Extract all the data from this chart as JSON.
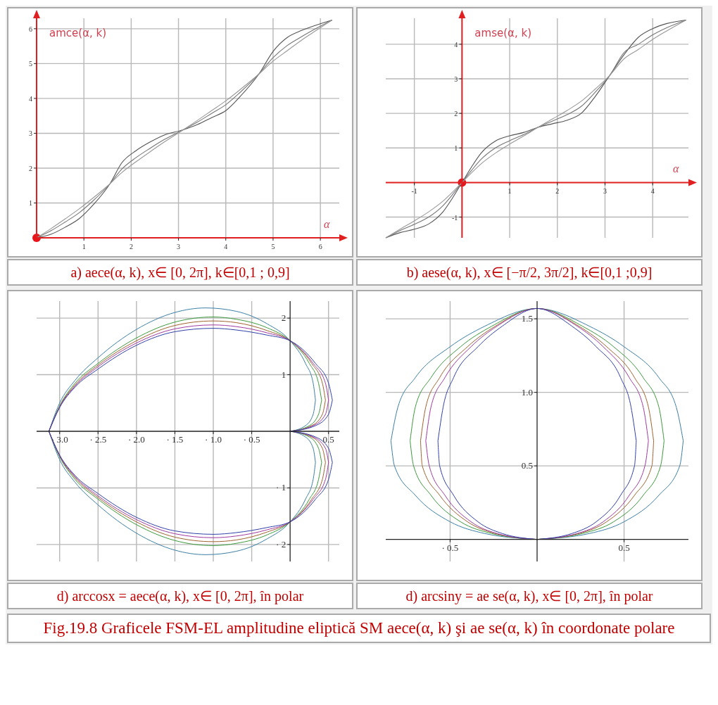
{
  "chart_data": [
    {
      "type": "line",
      "title": "a) aece(α, k), x∈ [0, 2π], k∈[0,1 ; 0,9]",
      "xlabel": "α",
      "ylabel": "amce(α, k)",
      "xlim": [
        0,
        6.4
      ],
      "ylim": [
        0,
        6.3
      ],
      "xticks": [
        1,
        2,
        3,
        4,
        5,
        6
      ],
      "yticks": [
        1,
        2,
        3,
        4,
        5,
        6
      ],
      "grid": true,
      "series": [
        {
          "color": "#555555",
          "x": [
            0,
            0.3,
            0.6,
            0.9,
            1.2,
            1.55,
            1.8,
            2.1,
            2.4,
            2.7,
            3.1,
            3.4,
            3.7,
            4.0,
            4.3,
            4.7,
            5.0,
            5.3,
            5.6,
            5.9,
            6.25
          ],
          "values": [
            0,
            0.1,
            0.3,
            0.55,
            0.95,
            1.55,
            2.15,
            2.5,
            2.75,
            2.95,
            3.1,
            3.25,
            3.45,
            3.65,
            4.05,
            4.7,
            5.35,
            5.75,
            5.95,
            6.1,
            6.25
          ]
        },
        {
          "color": "#777777",
          "x": [
            0,
            0.3,
            0.6,
            0.9,
            1.2,
            1.55,
            1.8,
            2.1,
            2.4,
            2.7,
            3.1,
            3.4,
            3.7,
            4.0,
            4.3,
            4.7,
            5.0,
            5.3,
            5.6,
            5.9,
            6.25
          ],
          "values": [
            0,
            0.2,
            0.45,
            0.72,
            1.07,
            1.55,
            1.97,
            2.3,
            2.57,
            2.82,
            3.1,
            3.32,
            3.57,
            3.82,
            4.17,
            4.7,
            5.17,
            5.52,
            5.77,
            6.0,
            6.25
          ]
        },
        {
          "color": "#999999",
          "x": [
            0,
            0.3,
            0.6,
            0.9,
            1.2,
            1.55,
            1.8,
            2.1,
            2.4,
            2.7,
            3.1,
            3.4,
            3.7,
            4.0,
            4.3,
            4.7,
            5.0,
            5.3,
            5.6,
            5.9,
            6.25
          ],
          "values": [
            0,
            0.26,
            0.54,
            0.83,
            1.15,
            1.55,
            1.87,
            2.18,
            2.47,
            2.75,
            3.1,
            3.37,
            3.65,
            3.93,
            4.25,
            4.7,
            5.07,
            5.37,
            5.67,
            5.94,
            6.25
          ]
        }
      ]
    },
    {
      "type": "line",
      "title": "b) aese(α, k), x∈ [−π/2, 3π/2], k∈[0,1 ;0,9]",
      "xlabel": "α",
      "ylabel": "amse(α, k)",
      "xlim": [
        -1.6,
        4.75
      ],
      "ylim": [
        -1.6,
        4.75
      ],
      "xticks": [
        -1,
        1,
        2,
        3,
        4
      ],
      "yticks": [
        -1,
        1,
        2,
        3,
        4
      ],
      "grid": true,
      "series": [
        {
          "color": "#555555",
          "x": [
            -1.6,
            -1.3,
            -1.0,
            -0.7,
            -0.4,
            -0.2,
            0,
            0.2,
            0.4,
            0.7,
            1.0,
            1.3,
            1.6,
            1.9,
            2.2,
            2.5,
            2.8,
            3.1,
            3.4,
            3.7,
            4.0,
            4.3,
            4.7
          ],
          "values": [
            -1.6,
            -1.45,
            -1.35,
            -1.2,
            -0.85,
            -0.45,
            0,
            0.45,
            0.85,
            1.2,
            1.35,
            1.45,
            1.6,
            1.7,
            1.8,
            2.0,
            2.5,
            3.1,
            3.7,
            4.2,
            4.45,
            4.6,
            4.7
          ]
        },
        {
          "color": "#777777",
          "x": [
            -1.6,
            -1.3,
            -1.0,
            -0.7,
            -0.4,
            -0.2,
            0,
            0.2,
            0.4,
            0.7,
            1.0,
            1.3,
            1.6,
            1.9,
            2.2,
            2.5,
            2.8,
            3.1,
            3.4,
            3.7,
            4.0,
            4.3,
            4.7
          ],
          "values": [
            -1.6,
            -1.39,
            -1.21,
            -1.0,
            -0.67,
            -0.35,
            0,
            0.35,
            0.67,
            1.0,
            1.21,
            1.39,
            1.6,
            1.78,
            1.96,
            2.2,
            2.62,
            3.1,
            3.76,
            4.0,
            4.27,
            4.48,
            4.7
          ]
        },
        {
          "color": "#999999",
          "x": [
            -1.6,
            -1.3,
            -1.0,
            -0.7,
            -0.4,
            -0.2,
            0,
            0.2,
            0.4,
            0.7,
            1.0,
            1.3,
            1.6,
            1.9,
            2.2,
            2.5,
            2.8,
            3.1,
            3.4,
            3.7,
            4.0,
            4.3,
            4.7
          ],
          "values": [
            -1.6,
            -1.35,
            -1.11,
            -0.85,
            -0.54,
            -0.28,
            0,
            0.28,
            0.54,
            0.85,
            1.11,
            1.35,
            1.6,
            1.84,
            2.08,
            2.35,
            2.71,
            3.1,
            3.58,
            3.85,
            4.14,
            4.39,
            4.7
          ]
        }
      ]
    },
    {
      "type": "line",
      "title": "d)    arccosx = aece(α, k), x∈ [0, 2π], în polar",
      "xlim": [
        -3.3,
        0.64
      ],
      "ylim": [
        -2.3,
        2.3
      ],
      "xticks": [
        {
          "value": -3,
          "label": "· 3.0"
        },
        {
          "value": -2.5,
          "label": "· 2.5"
        },
        {
          "value": -2,
          "label": "· 2.0"
        },
        {
          "value": -1.5,
          "label": "· 1.5"
        },
        {
          "value": -1,
          "label": "· 1.0"
        },
        {
          "value": -0.5,
          "label": "· 0.5"
        },
        0.5
      ],
      "yticks": [
        {
          "value": -2,
          "label": "· 2"
        },
        {
          "value": -1,
          "label": "· 1"
        },
        1,
        2
      ],
      "grid": true,
      "series": [
        {
          "color": "#3b7fa6",
          "x": [
            0,
            0.2,
            0.3,
            0.33
          ],
          "values": [
            0,
            0.1,
            0.3,
            0.55
          ]
        },
        {
          "color": "#3b7fa6",
          "x": [
            0.33,
            0.3,
            0.2,
            0,
            -0.3,
            -0.7,
            -1.1,
            -1.5,
            -2.0,
            -2.5,
            -2.8,
            -3.0,
            -3.14
          ],
          "values": [
            0.55,
            0.85,
            1.2,
            1.6,
            1.9,
            2.12,
            2.18,
            2.1,
            1.8,
            1.3,
            0.9,
            0.5,
            0
          ]
        },
        {
          "color": "#3b7fa6",
          "x": [
            -3.14,
            -3.0,
            -2.8,
            -2.5,
            -2.0,
            -1.5,
            -1.1,
            -0.7,
            -0.3,
            0,
            0.2,
            0.3,
            0.33
          ],
          "values": [
            0,
            -0.5,
            -0.9,
            -1.3,
            -1.8,
            -2.1,
            -2.18,
            -2.12,
            -1.9,
            -1.6,
            -1.2,
            -0.85,
            -0.55
          ]
        },
        {
          "color": "#3b7fa6",
          "x": [
            0.33,
            0.3,
            0.2,
            0
          ],
          "values": [
            -0.55,
            -0.3,
            -0.1,
            0
          ]
        },
        {
          "color": "#3c9a3c",
          "x": [
            0,
            0.25,
            0.37,
            0.41
          ],
          "values": [
            0,
            0.1,
            0.3,
            0.55
          ]
        },
        {
          "color": "#3c9a3c",
          "x": [
            0.41,
            0.37,
            0.25,
            0,
            -0.3,
            -0.7,
            -1.0,
            -1.5,
            -2.0,
            -2.5,
            -2.8,
            -3.0,
            -3.14
          ],
          "values": [
            0.55,
            0.85,
            1.2,
            1.6,
            1.83,
            1.98,
            2.02,
            1.93,
            1.65,
            1.2,
            0.85,
            0.45,
            0
          ]
        },
        {
          "color": "#3c9a3c",
          "x": [
            -3.14,
            -3.0,
            -2.8,
            -2.5,
            -2.0,
            -1.5,
            -1.0,
            -0.7,
            -0.3,
            0,
            0.25,
            0.37,
            0.41
          ],
          "values": [
            0,
            -0.45,
            -0.85,
            -1.2,
            -1.65,
            -1.93,
            -2.02,
            -1.98,
            -1.83,
            -1.6,
            -1.2,
            -0.85,
            -0.55
          ]
        },
        {
          "color": "#3c9a3c",
          "x": [
            0.41,
            0.37,
            0.25,
            0
          ],
          "values": [
            -0.55,
            -0.3,
            -0.1,
            0
          ]
        },
        {
          "color": "#a0622d",
          "x": [
            0,
            0.28,
            0.42,
            0.46
          ],
          "values": [
            0,
            0.1,
            0.3,
            0.55
          ]
        },
        {
          "color": "#a0622d",
          "x": [
            0.46,
            0.42,
            0.28,
            0,
            -0.3,
            -0.7,
            -1.0,
            -1.5,
            -2.0,
            -2.5,
            -2.8,
            -3.0,
            -3.14
          ],
          "values": [
            0.55,
            0.85,
            1.2,
            1.6,
            1.78,
            1.92,
            1.95,
            1.87,
            1.6,
            1.17,
            0.82,
            0.44,
            0
          ]
        },
        {
          "color": "#a0622d",
          "x": [
            -3.14,
            -3.0,
            -2.8,
            -2.5,
            -2.0,
            -1.5,
            -1.0,
            -0.7,
            -0.3,
            0,
            0.28,
            0.42,
            0.46
          ],
          "values": [
            0,
            -0.44,
            -0.82,
            -1.17,
            -1.6,
            -1.87,
            -1.95,
            -1.92,
            -1.78,
            -1.6,
            -1.2,
            -0.85,
            -0.55
          ]
        },
        {
          "color": "#a0622d",
          "x": [
            0.46,
            0.42,
            0.28,
            0
          ],
          "values": [
            -0.55,
            -0.3,
            -0.1,
            0
          ]
        },
        {
          "color": "#a03aa0",
          "x": [
            0,
            0.3,
            0.46,
            0.5
          ],
          "values": [
            0,
            0.1,
            0.3,
            0.55
          ]
        },
        {
          "color": "#a03aa0",
          "x": [
            0.5,
            0.46,
            0.3,
            0,
            -0.3,
            -0.7,
            -1.0,
            -1.5,
            -2.0,
            -2.5,
            -2.8,
            -3.0,
            -3.14
          ],
          "values": [
            0.55,
            0.85,
            1.2,
            1.6,
            1.74,
            1.85,
            1.88,
            1.81,
            1.56,
            1.14,
            0.8,
            0.43,
            0
          ]
        },
        {
          "color": "#a03aa0",
          "x": [
            -3.14,
            -3.0,
            -2.8,
            -2.5,
            -2.0,
            -1.5,
            -1.0,
            -0.7,
            -0.3,
            0,
            0.3,
            0.46,
            0.5
          ],
          "values": [
            0,
            -0.43,
            -0.8,
            -1.14,
            -1.56,
            -1.81,
            -1.88,
            -1.85,
            -1.74,
            -1.6,
            -1.2,
            -0.85,
            -0.55
          ]
        },
        {
          "color": "#a03aa0",
          "x": [
            0.5,
            0.46,
            0.3,
            0
          ],
          "values": [
            -0.55,
            -0.3,
            -0.1,
            0
          ]
        },
        {
          "color": "#3040a8",
          "x": [
            0,
            0.33,
            0.5,
            0.55
          ],
          "values": [
            0,
            0.1,
            0.3,
            0.55
          ]
        },
        {
          "color": "#3040a8",
          "x": [
            0.55,
            0.5,
            0.33,
            0,
            -0.3,
            -0.7,
            -1.0,
            -1.5,
            -2.0,
            -2.5,
            -2.8,
            -3.0,
            -3.14
          ],
          "values": [
            0.55,
            0.85,
            1.2,
            1.6,
            1.7,
            1.79,
            1.82,
            1.76,
            1.52,
            1.1,
            0.78,
            0.42,
            0
          ]
        },
        {
          "color": "#3040a8",
          "x": [
            -3.14,
            -3.0,
            -2.8,
            -2.5,
            -2.0,
            -1.5,
            -1.0,
            -0.7,
            -0.3,
            0,
            0.33,
            0.5,
            0.55
          ],
          "values": [
            0,
            -0.42,
            -0.78,
            -1.1,
            -1.52,
            -1.76,
            -1.82,
            -1.79,
            -1.7,
            -1.6,
            -1.2,
            -0.85,
            -0.55
          ]
        },
        {
          "color": "#3040a8",
          "x": [
            0.55,
            0.5,
            0.33,
            0
          ],
          "values": [
            -0.55,
            -0.3,
            -0.1,
            0
          ]
        }
      ]
    },
    {
      "type": "line",
      "title": "d)  arcsiny = ae se(α, k), x∈ [0, 2π], în polar",
      "annotations": [
        "Fig.19.8   Graficele FSM-EL amplitudine eliptică SM aece(α, k) şi ae se(α, k) în coordonate polare"
      ],
      "xlim": [
        -0.87,
        0.87
      ],
      "ylim": [
        -0.15,
        1.62
      ],
      "xticks": [
        {
          "value": -0.5,
          "label": "· 0.5"
        },
        0.5
      ],
      "yticks": [
        0.5,
        {
          "value": 1,
          "label": "1.0"
        },
        1.5
      ],
      "grid": true,
      "series": [
        {
          "color": "#3b7fa6",
          "x": [
            0,
            0.3,
            0.5,
            0.7,
            0.82,
            0.84
          ],
          "values": [
            0,
            0.04,
            0.12,
            0.3,
            0.5,
            0.67
          ]
        },
        {
          "color": "#3b7fa6",
          "x": [
            0.84,
            0.8,
            0.7,
            0.5,
            0.3,
            0,
            -0.3,
            -0.5,
            -0.7,
            -0.8,
            -0.84
          ],
          "values": [
            0.67,
            0.9,
            1.1,
            1.31,
            1.45,
            1.57,
            1.45,
            1.31,
            1.1,
            0.9,
            0.67
          ]
        },
        {
          "color": "#3b7fa6",
          "x": [
            -0.84,
            -0.82,
            -0.7,
            -0.5,
            -0.3,
            0
          ],
          "values": [
            0.67,
            0.5,
            0.3,
            0.12,
            0.04,
            0
          ]
        },
        {
          "color": "#3c9a3c",
          "x": [
            0,
            0.26,
            0.44,
            0.61,
            0.71,
            0.73
          ],
          "values": [
            0,
            0.04,
            0.12,
            0.3,
            0.5,
            0.67
          ]
        },
        {
          "color": "#3c9a3c",
          "x": [
            0.73,
            0.7,
            0.61,
            0.44,
            0.26,
            0,
            -0.26,
            -0.44,
            -0.61,
            -0.7,
            -0.73
          ],
          "values": [
            0.67,
            0.9,
            1.1,
            1.31,
            1.45,
            1.57,
            1.45,
            1.31,
            1.1,
            0.9,
            0.67
          ]
        },
        {
          "color": "#3c9a3c",
          "x": [
            -0.73,
            -0.71,
            -0.61,
            -0.44,
            -0.26,
            0
          ],
          "values": [
            0.67,
            0.5,
            0.3,
            0.12,
            0.04,
            0
          ]
        },
        {
          "color": "#a0622d",
          "x": [
            0,
            0.24,
            0.4,
            0.56,
            0.66,
            0.67
          ],
          "values": [
            0,
            0.04,
            0.12,
            0.3,
            0.5,
            0.67
          ]
        },
        {
          "color": "#a0622d",
          "x": [
            0.67,
            0.64,
            0.56,
            0.4,
            0.24,
            0,
            -0.24,
            -0.4,
            -0.56,
            -0.64,
            -0.67
          ],
          "values": [
            0.67,
            0.9,
            1.1,
            1.31,
            1.45,
            1.57,
            1.45,
            1.31,
            1.1,
            0.9,
            0.67
          ]
        },
        {
          "color": "#a0622d",
          "x": [
            -0.67,
            -0.66,
            -0.56,
            -0.4,
            -0.24,
            0
          ],
          "values": [
            0.67,
            0.5,
            0.3,
            0.12,
            0.04,
            0
          ]
        },
        {
          "color": "#a03aa0",
          "x": [
            0,
            0.23,
            0.38,
            0.53,
            0.62,
            0.64
          ],
          "values": [
            0,
            0.04,
            0.12,
            0.3,
            0.5,
            0.67
          ]
        },
        {
          "color": "#a03aa0",
          "x": [
            0.64,
            0.61,
            0.53,
            0.38,
            0.23,
            0,
            -0.23,
            -0.38,
            -0.53,
            -0.61,
            -0.64
          ],
          "values": [
            0.67,
            0.9,
            1.1,
            1.31,
            1.45,
            1.57,
            1.45,
            1.31,
            1.1,
            0.9,
            0.67
          ]
        },
        {
          "color": "#a03aa0",
          "x": [
            -0.64,
            -0.62,
            -0.53,
            -0.38,
            -0.23,
            0
          ],
          "values": [
            0.67,
            0.5,
            0.3,
            0.12,
            0.04,
            0
          ]
        },
        {
          "color": "#3040a8",
          "x": [
            0,
            0.2,
            0.34,
            0.48,
            0.56,
            0.57
          ],
          "values": [
            0,
            0.04,
            0.12,
            0.3,
            0.5,
            0.67
          ]
        },
        {
          "color": "#3040a8",
          "x": [
            0.57,
            0.54,
            0.48,
            0.34,
            0.2,
            0,
            -0.2,
            -0.34,
            -0.48,
            -0.54,
            -0.57
          ],
          "values": [
            0.67,
            0.9,
            1.1,
            1.31,
            1.45,
            1.57,
            1.45,
            1.31,
            1.1,
            0.9,
            0.67
          ]
        },
        {
          "color": "#3040a8",
          "x": [
            -0.57,
            -0.56,
            -0.48,
            -0.34,
            -0.2,
            0
          ],
          "values": [
            0.67,
            0.5,
            0.3,
            0.12,
            0.04,
            0
          ]
        }
      ]
    }
  ]
}
